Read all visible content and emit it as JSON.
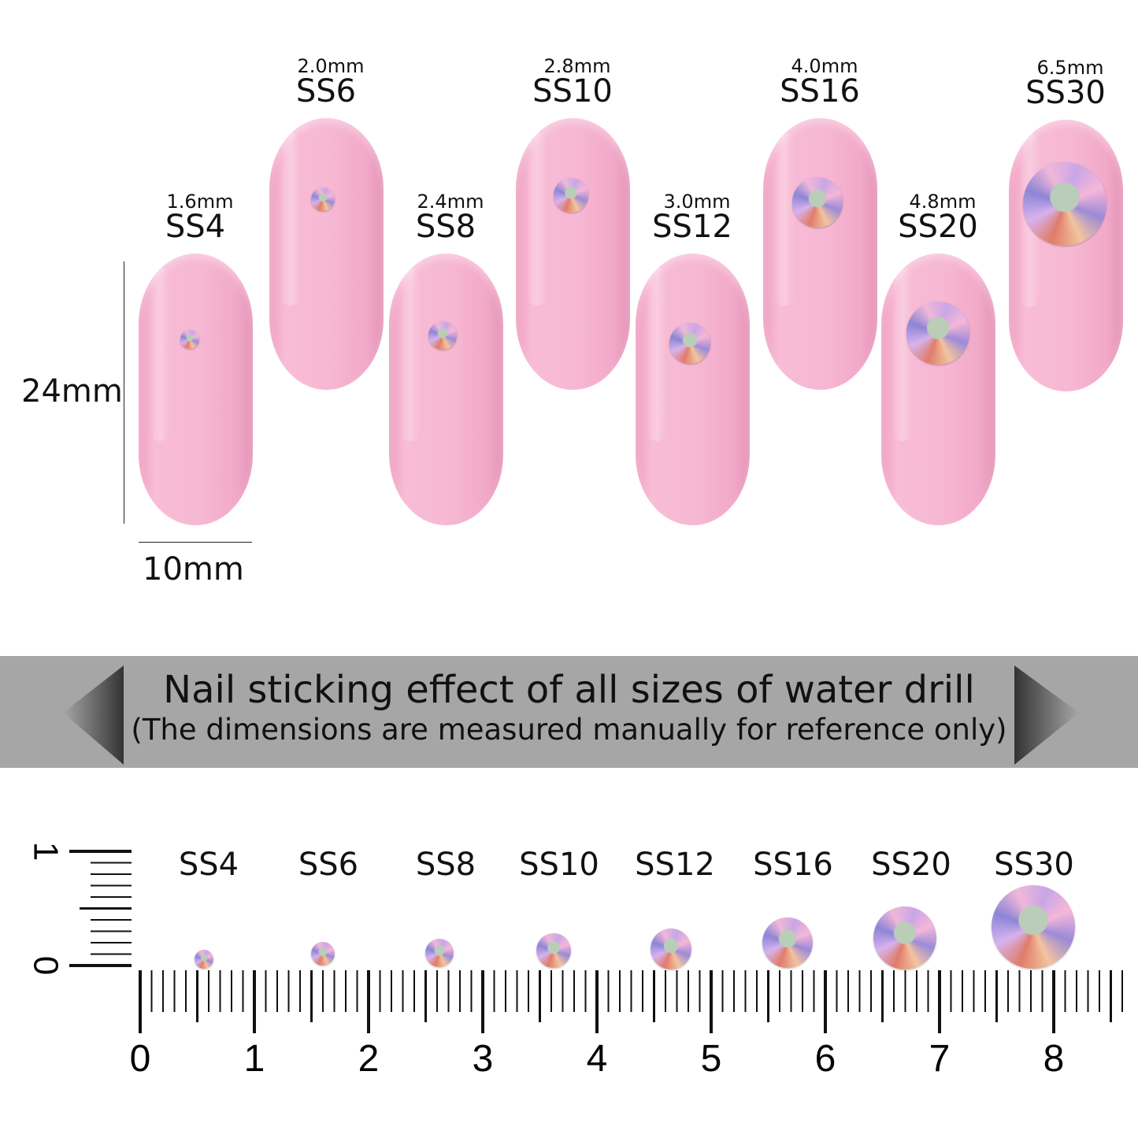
{
  "nails": [
    {
      "mm": "1.6mm",
      "ss": "SS4"
    },
    {
      "mm": "2.0mm",
      "ss": "SS6"
    },
    {
      "mm": "2.4mm",
      "ss": "SS8"
    },
    {
      "mm": "2.8mm",
      "ss": "SS10"
    },
    {
      "mm": "3.0mm",
      "ss": "SS12"
    },
    {
      "mm": "4.0mm",
      "ss": "SS16"
    },
    {
      "mm": "4.8mm",
      "ss": "SS20"
    },
    {
      "mm": "6.5mm",
      "ss": "SS30"
    }
  ],
  "dimensions": {
    "height": "24mm",
    "width": "10mm"
  },
  "banner": {
    "title": "Nail sticking effect of all sizes of water drill",
    "subtitle": "(The dimensions are measured manually for reference only)"
  },
  "ruler": {
    "labels": [
      "SS4",
      "SS6",
      "SS8",
      "SS10",
      "SS12",
      "SS16",
      "SS20",
      "SS30"
    ],
    "horizontal_ticks": [
      "0",
      "1",
      "2",
      "3",
      "4",
      "5",
      "6",
      "7",
      "8"
    ],
    "vertical_ticks": [
      "0",
      "1"
    ]
  },
  "colors": {
    "nail": "#f6b7d2",
    "banner": "#a6a6a6"
  }
}
